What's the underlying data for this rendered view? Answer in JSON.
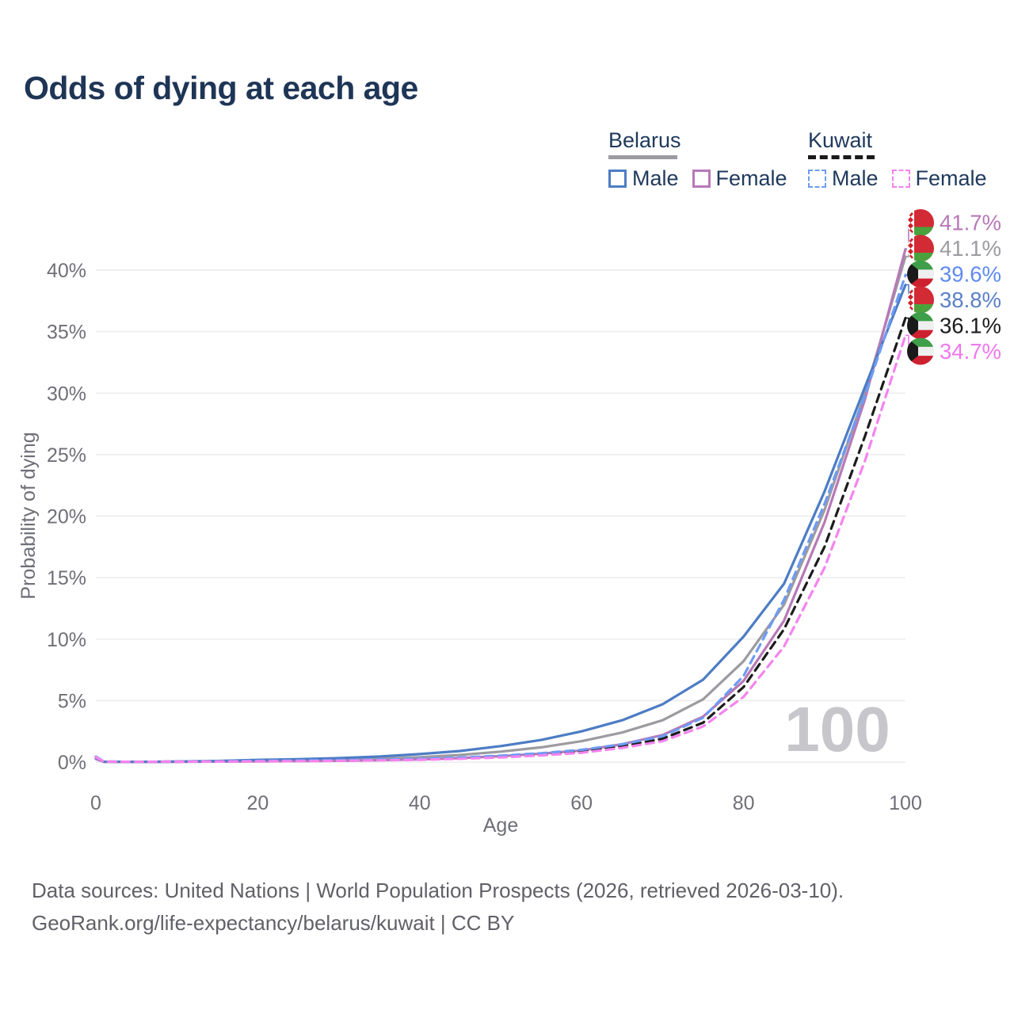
{
  "title": "Odds of dying at each age",
  "legend": {
    "groups": [
      {
        "country": "Belarus",
        "line_style": "solid",
        "line_color": "#9b9ba1",
        "items": [
          {
            "label": "Male",
            "box_color": "#4d7cc4",
            "dashed": false
          },
          {
            "label": "Female",
            "box_color": "#b779b7",
            "dashed": false
          }
        ]
      },
      {
        "country": "Kuwait",
        "line_style": "dashed",
        "line_color": "#1a1a1a",
        "items": [
          {
            "label": "Male",
            "box_color": "#6e9bf4",
            "dashed": true
          },
          {
            "label": "Female",
            "box_color": "#f583ef",
            "dashed": true
          }
        ]
      }
    ]
  },
  "chart_data": {
    "type": "line",
    "title": "Odds of dying at each age",
    "xlabel": "Age",
    "ylabel": "Probability of dying",
    "xlim": [
      0,
      100
    ],
    "ylim": [
      0,
      43
    ],
    "xticks": [
      0,
      20,
      40,
      60,
      80,
      100
    ],
    "yticks": [
      0,
      5,
      10,
      15,
      20,
      25,
      30,
      35,
      40
    ],
    "ytick_suffix": "%",
    "grid": "horizontal",
    "watermark": "100",
    "x": [
      0,
      1,
      5,
      10,
      15,
      20,
      25,
      30,
      35,
      40,
      45,
      50,
      55,
      60,
      65,
      70,
      75,
      80,
      85,
      90,
      95,
      100
    ],
    "series": [
      {
        "name": "Belarus Female",
        "country": "Belarus",
        "sex": "Female",
        "style": "solid",
        "color": "#b779b7",
        "label_color": "#b779b7",
        "end_label": "41.7%",
        "values": [
          0.25,
          0.02,
          0.01,
          0.02,
          0.04,
          0.06,
          0.08,
          0.1,
          0.15,
          0.22,
          0.32,
          0.48,
          0.68,
          0.95,
          1.45,
          2.2,
          3.7,
          6.6,
          11.5,
          19.5,
          29.5,
          41.7
        ]
      },
      {
        "name": "Belarus Both sexes",
        "country": "Belarus",
        "sex": "Both",
        "style": "solid",
        "color": "#9b9ba1",
        "label_color": "#9b9ba1",
        "end_label": "41.1%",
        "values": [
          0.3,
          0.03,
          0.02,
          0.03,
          0.06,
          0.12,
          0.15,
          0.2,
          0.28,
          0.4,
          0.58,
          0.85,
          1.2,
          1.7,
          2.4,
          3.4,
          5.1,
          8.2,
          12.8,
          20.5,
          30.0,
          41.1
        ]
      },
      {
        "name": "Kuwait Male",
        "country": "Kuwait",
        "sex": "Male",
        "style": "dashed",
        "color": "#6e9bf4",
        "label_color": "#5f8af0",
        "end_label": "39.6%",
        "values": [
          0.45,
          0.04,
          0.02,
          0.03,
          0.06,
          0.1,
          0.13,
          0.16,
          0.2,
          0.27,
          0.37,
          0.52,
          0.72,
          1.0,
          1.45,
          2.1,
          3.6,
          7.0,
          13.2,
          21.0,
          29.8,
          39.6
        ]
      },
      {
        "name": "Belarus Male",
        "country": "Belarus",
        "sex": "Male",
        "style": "solid",
        "color": "#4d7cc4",
        "label_color": "#5c80c8",
        "end_label": "38.8%",
        "values": [
          0.35,
          0.03,
          0.02,
          0.04,
          0.09,
          0.18,
          0.24,
          0.32,
          0.45,
          0.65,
          0.9,
          1.3,
          1.8,
          2.5,
          3.4,
          4.7,
          6.7,
          10.2,
          14.5,
          22.0,
          30.5,
          38.8
        ]
      },
      {
        "name": "Kuwait Both sexes",
        "country": "Kuwait",
        "sex": "Both",
        "style": "dashed",
        "color": "#1c1c1c",
        "label_color": "#1c1c1c",
        "end_label": "36.1%",
        "values": [
          0.42,
          0.04,
          0.02,
          0.03,
          0.05,
          0.08,
          0.1,
          0.13,
          0.17,
          0.23,
          0.32,
          0.45,
          0.63,
          0.88,
          1.3,
          1.9,
          3.2,
          6.1,
          10.8,
          17.5,
          26.5,
          36.1
        ]
      },
      {
        "name": "Kuwait Female",
        "country": "Kuwait",
        "sex": "Female",
        "style": "dashed",
        "color": "#f583ef",
        "label_color": "#f078ee",
        "end_label": "34.7%",
        "values": [
          0.4,
          0.03,
          0.02,
          0.03,
          0.04,
          0.06,
          0.08,
          0.1,
          0.14,
          0.19,
          0.27,
          0.38,
          0.54,
          0.76,
          1.15,
          1.7,
          2.9,
          5.3,
          9.4,
          15.8,
          24.5,
          34.7
        ]
      }
    ]
  },
  "footer": {
    "line1": "Data sources: United Nations | World Population Prospects (2026, retrieved 2026-03-10).",
    "line2": "GeoRank.org/life-expectancy/belarus/kuwait | CC BY"
  },
  "colors": {
    "title_text": "#1e3556",
    "axis_text": "#6f6f78",
    "grid_line": "#ececee",
    "watermark": "#c6c6cb",
    "footer_text": "#606068"
  }
}
